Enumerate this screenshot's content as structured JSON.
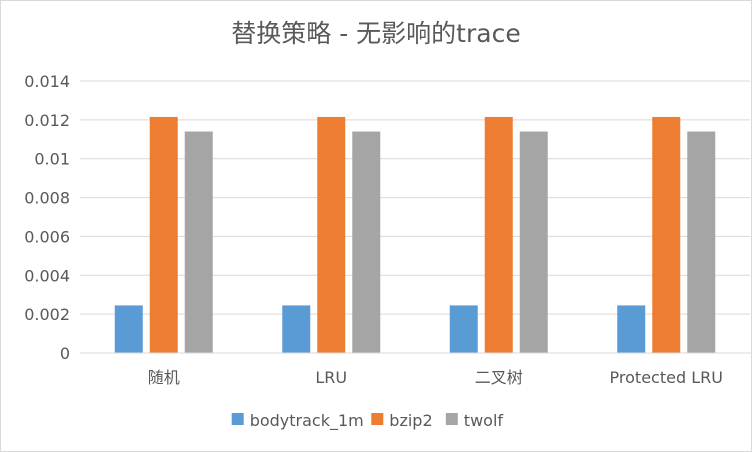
{
  "chart_data": {
    "type": "bar",
    "title": "替换策略 - 无影响的trace",
    "categories": [
      "随机",
      "LRU",
      "二叉树",
      "Protected LRU"
    ],
    "series": [
      {
        "name": "bodytrack_1m",
        "color": "#5b9bd5",
        "values": [
          0.00245,
          0.00245,
          0.00245,
          0.00245
        ]
      },
      {
        "name": "bzip2",
        "color": "#ed7d31",
        "values": [
          0.01215,
          0.01215,
          0.01215,
          0.01215
        ]
      },
      {
        "name": "twolf",
        "color": "#a5a5a5",
        "values": [
          0.0114,
          0.0114,
          0.0114,
          0.0114
        ]
      }
    ],
    "ylim": [
      0,
      0.014
    ],
    "yticks": [
      "0",
      "0.002",
      "0.004",
      "0.006",
      "0.008",
      "0.01",
      "0.012",
      "0.014"
    ],
    "grid": true,
    "legend": "bottom"
  }
}
